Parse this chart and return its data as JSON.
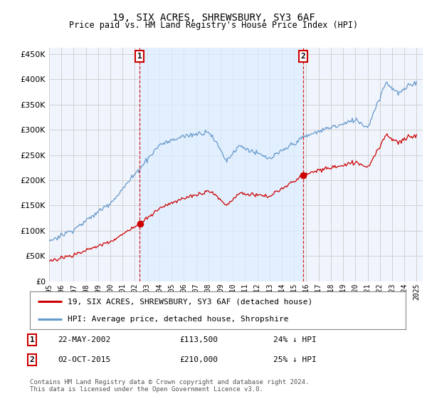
{
  "title": "19, SIX ACRES, SHREWSBURY, SY3 6AF",
  "subtitle": "Price paid vs. HM Land Registry's House Price Index (HPI)",
  "sale1_year": 2002.38,
  "sale1_price": 113500,
  "sale1_label": "22-MAY-2002",
  "sale1_pct": "24% ↓ HPI",
  "sale2_year": 2015.75,
  "sale2_price": 210000,
  "sale2_label": "02-OCT-2015",
  "sale2_pct": "25% ↓ HPI",
  "hpi_color": "#6699cc",
  "price_color": "#cc0000",
  "shade_color": "#ddeeff",
  "bg_color": "#f0f4fc",
  "grid_color": "#cccccc",
  "legend_label1": "19, SIX ACRES, SHREWSBURY, SY3 6AF (detached house)",
  "legend_label2": "HPI: Average price, detached house, Shropshire",
  "footer1": "Contains HM Land Registry data © Crown copyright and database right 2024.",
  "footer2": "This data is licensed under the Open Government Licence v3.0.",
  "ylim": [
    0,
    460000
  ],
  "yticks": [
    0,
    50000,
    100000,
    150000,
    200000,
    250000,
    300000,
    350000,
    400000,
    450000
  ],
  "xlim_left": 1995.0,
  "xlim_right": 2025.5
}
